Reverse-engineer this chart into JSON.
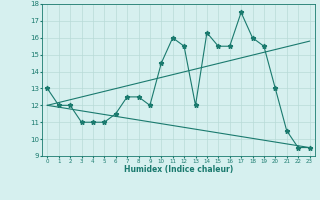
{
  "x_data": [
    0,
    1,
    2,
    3,
    4,
    5,
    6,
    7,
    8,
    9,
    10,
    11,
    12,
    13,
    14,
    15,
    16,
    17,
    18,
    19,
    20,
    21,
    22,
    23
  ],
  "y_main": [
    13,
    12,
    12,
    11,
    11,
    11,
    11.5,
    12.5,
    12.5,
    12,
    14.5,
    16,
    15.5,
    12,
    16.3,
    15.5,
    15.5,
    17.5,
    16,
    15.5,
    13,
    10.5,
    9.5,
    9.5
  ],
  "trend1_x": [
    0,
    23
  ],
  "trend1_y": [
    12.0,
    15.8
  ],
  "trend2_x": [
    0,
    23
  ],
  "trend2_y": [
    12.0,
    9.5
  ],
  "xlim": [
    -0.5,
    23.5
  ],
  "ylim": [
    9,
    18
  ],
  "yticks": [
    9,
    10,
    11,
    12,
    13,
    14,
    15,
    16,
    17,
    18
  ],
  "xticks": [
    0,
    1,
    2,
    3,
    4,
    5,
    6,
    7,
    8,
    9,
    10,
    11,
    12,
    13,
    14,
    15,
    16,
    17,
    18,
    19,
    20,
    21,
    22,
    23
  ],
  "xlabel": "Humidex (Indice chaleur)",
  "line_color": "#1a7a6e",
  "bg_color": "#d6f0ef",
  "grid_color": "#b8dbd8"
}
